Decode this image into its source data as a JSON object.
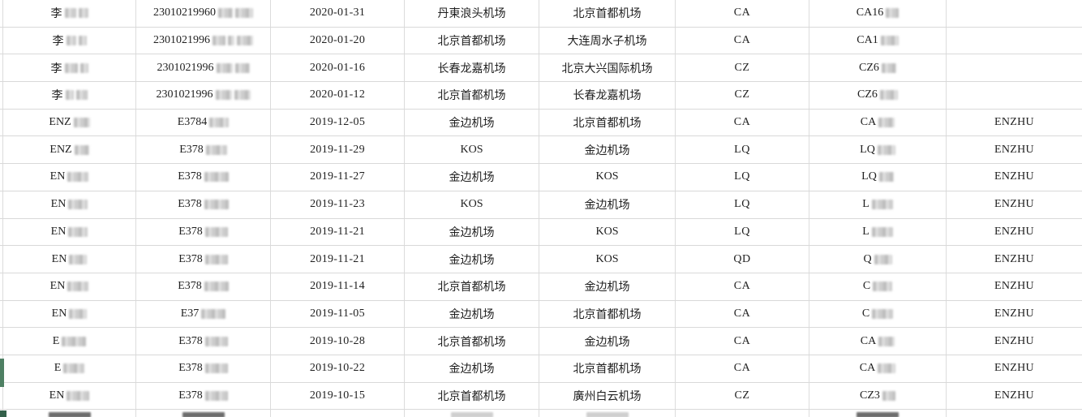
{
  "colors": {
    "background": "#ffffff",
    "grid_line": "#d9d9d9",
    "text": "#1f1f1f",
    "selection_green": "#4e8063",
    "corner_green": "#33604a"
  },
  "table": {
    "columns": [
      "name",
      "id_number",
      "flight_date",
      "departure_airport",
      "arrival_airport",
      "airline_code",
      "flight_number",
      "passenger_code"
    ],
    "rows": [
      {
        "name": {
          "t": "李",
          "blur": [
            14,
            12
          ]
        },
        "id": {
          "t": "23010219960",
          "blur": [
            18,
            22
          ]
        },
        "date": "2020-01-31",
        "dep": "丹東浪头机场",
        "arr": "北京首都机场",
        "airline": "CA",
        "flight": {
          "t": "CA16",
          "blur": [
            16
          ]
        },
        "tail": ""
      },
      {
        "name": {
          "t": "李",
          "blur": [
            12,
            10
          ]
        },
        "id": {
          "t": "2301021996",
          "blur": [
            16,
            8,
            20
          ]
        },
        "date": "2020-01-20",
        "dep": "北京首都机场",
        "arr": "大连周水子机场",
        "airline": "CA",
        "flight": {
          "t": "CA1",
          "blur": [
            22
          ]
        },
        "tail": ""
      },
      {
        "name": {
          "t": "李",
          "blur": [
            16,
            10
          ]
        },
        "id": {
          "t": "2301021996",
          "blur": [
            20,
            18
          ]
        },
        "date": "2020-01-16",
        "dep": "长春龙嘉机场",
        "arr": "北京大兴国际机场",
        "airline": "CZ",
        "flight": {
          "t": "CZ6",
          "blur": [
            18
          ]
        },
        "tail": ""
      },
      {
        "name": {
          "t": "李",
          "blur": [
            10,
            14
          ]
        },
        "id": {
          "t": "2301021996",
          "blur": [
            20,
            20
          ]
        },
        "date": "2020-01-12",
        "dep": "北京首都机场",
        "arr": "长春龙嘉机场",
        "airline": "CZ",
        "flight": {
          "t": "CZ6",
          "blur": [
            22
          ]
        },
        "tail": ""
      },
      {
        "name": {
          "t": "ENZ",
          "blur": [
            20
          ]
        },
        "id": {
          "t": "E3784",
          "blur": [
            24
          ]
        },
        "date": "2019-12-05",
        "dep": "金边机场",
        "arr": "北京首都机场",
        "airline": "CA",
        "flight": {
          "t": "CA",
          "blur": [
            20
          ]
        },
        "tail": "ENZHU"
      },
      {
        "name": {
          "t": "ENZ",
          "blur": [
            18
          ]
        },
        "id": {
          "t": "E378",
          "blur": [
            26
          ]
        },
        "date": "2019-11-29",
        "dep": "KOS",
        "arr": "金边机场",
        "airline": "LQ",
        "flight": {
          "t": "LQ",
          "blur": [
            22
          ]
        },
        "tail": "ENZHU"
      },
      {
        "name": {
          "t": "EN",
          "blur": [
            26
          ]
        },
        "id": {
          "t": "E378",
          "blur": [
            30
          ]
        },
        "date": "2019-11-27",
        "dep": "金边机场",
        "arr": "KOS",
        "airline": "LQ",
        "flight": {
          "t": "LQ",
          "blur": [
            18
          ]
        },
        "tail": "ENZHU"
      },
      {
        "name": {
          "t": "EN",
          "blur": [
            24
          ]
        },
        "id": {
          "t": "E378",
          "blur": [
            30
          ]
        },
        "date": "2019-11-23",
        "dep": "KOS",
        "arr": "金边机场",
        "airline": "LQ",
        "flight": {
          "t": "L",
          "blur": [
            26
          ]
        },
        "tail": "ENZHU"
      },
      {
        "name": {
          "t": "EN",
          "blur": [
            24
          ]
        },
        "id": {
          "t": "E378",
          "blur": [
            28
          ]
        },
        "date": "2019-11-21",
        "dep": "金边机场",
        "arr": "KOS",
        "airline": "LQ",
        "flight": {
          "t": "L",
          "blur": [
            26
          ]
        },
        "tail": "ENZHU"
      },
      {
        "name": {
          "t": "EN",
          "blur": [
            22
          ]
        },
        "id": {
          "t": "E378",
          "blur": [
            28
          ]
        },
        "date": "2019-11-21",
        "dep": "金边机场",
        "arr": "KOS",
        "airline": "QD",
        "flight": {
          "t": "Q",
          "blur": [
            22
          ]
        },
        "tail": "ENZHU"
      },
      {
        "name": {
          "t": "EN",
          "blur": [
            26
          ]
        },
        "id": {
          "t": "E378",
          "blur": [
            30
          ]
        },
        "date": "2019-11-14",
        "dep": "北京首都机场",
        "arr": "金边机场",
        "airline": "CA",
        "flight": {
          "t": "C",
          "blur": [
            24
          ]
        },
        "tail": "ENZHU"
      },
      {
        "name": {
          "t": "EN",
          "blur": [
            22
          ]
        },
        "id": {
          "t": "E37",
          "blur": [
            30
          ]
        },
        "date": "2019-11-05",
        "dep": "金边机场",
        "arr": "北京首都机场",
        "airline": "CA",
        "flight": {
          "t": "C",
          "blur": [
            26
          ]
        },
        "tail": "ENZHU"
      },
      {
        "name": {
          "t": "E",
          "blur": [
            30
          ]
        },
        "id": {
          "t": "E378",
          "blur": [
            28
          ]
        },
        "date": "2019-10-28",
        "dep": "北京首都机场",
        "arr": "金边机场",
        "airline": "CA",
        "flight": {
          "t": "CA",
          "blur": [
            20
          ]
        },
        "tail": "ENZHU"
      },
      {
        "name": {
          "t": "E",
          "blur": [
            26
          ]
        },
        "id": {
          "t": "E378",
          "blur": [
            28
          ]
        },
        "date": "2019-10-22",
        "dep": "金边机场",
        "arr": "北京首都机场",
        "airline": "CA",
        "flight": {
          "t": "CA",
          "blur": [
            22
          ]
        },
        "tail": "ENZHU"
      },
      {
        "name": {
          "t": "EN",
          "blur": [
            28
          ]
        },
        "id": {
          "t": "E378",
          "blur": [
            28
          ]
        },
        "date": "2019-10-15",
        "dep": "北京首都机场",
        "arr": "廣州白云机场",
        "airline": "CZ",
        "flight": {
          "t": "CZ3",
          "blur": [
            16
          ]
        },
        "tail": "ENZHU"
      }
    ],
    "cutoff_row": {
      "visible": true,
      "smudges": [
        {
          "col": "name",
          "shade": "dark"
        },
        {
          "col": "id",
          "shade": "dark"
        },
        {
          "col": "dep",
          "shade": "light"
        },
        {
          "col": "arr",
          "shade": "light"
        },
        {
          "col": "flight",
          "shade": "dark"
        }
      ]
    }
  }
}
